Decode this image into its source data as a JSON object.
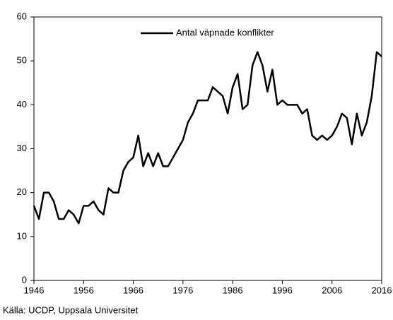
{
  "chart_data": {
    "type": "line",
    "x": [
      1946,
      1947,
      1948,
      1949,
      1950,
      1951,
      1952,
      1953,
      1954,
      1955,
      1956,
      1957,
      1958,
      1959,
      1960,
      1961,
      1962,
      1963,
      1964,
      1965,
      1966,
      1967,
      1968,
      1969,
      1970,
      1971,
      1972,
      1973,
      1974,
      1975,
      1976,
      1977,
      1978,
      1979,
      1980,
      1981,
      1982,
      1983,
      1984,
      1985,
      1986,
      1987,
      1988,
      1989,
      1990,
      1991,
      1992,
      1993,
      1994,
      1995,
      1996,
      1997,
      1998,
      1999,
      2000,
      2001,
      2002,
      2003,
      2004,
      2005,
      2006,
      2007,
      2008,
      2009,
      2010,
      2011,
      2012,
      2013,
      2014,
      2015,
      2016
    ],
    "series": [
      {
        "name": "Antal väpnade konflikter",
        "color": "#000000",
        "values": [
          17,
          14,
          20,
          20,
          18,
          14,
          14,
          16,
          15,
          13,
          17,
          17,
          18,
          16,
          15,
          21,
          20,
          20,
          25,
          27,
          28,
          33,
          26,
          29,
          26,
          29,
          26,
          26,
          28,
          30,
          32,
          36,
          38,
          41,
          41,
          41,
          44,
          43,
          42,
          38,
          44,
          47,
          39,
          40,
          49,
          52,
          49,
          43,
          48,
          40,
          41,
          40,
          40,
          40,
          38,
          39,
          33,
          32,
          33,
          32,
          33,
          35,
          38,
          37,
          31,
          38,
          33,
          36,
          42,
          52,
          51
        ]
      }
    ],
    "xlim": [
      1946,
      2016
    ],
    "xticks": [
      1946,
      1956,
      1966,
      1976,
      1986,
      1996,
      2006,
      2016
    ],
    "ylim": [
      0,
      60
    ],
    "yticks": [
      0,
      10,
      20,
      30,
      40,
      50,
      60
    ],
    "legend": "top",
    "source": "Källa: UCDP, Uppsala Universitet"
  }
}
